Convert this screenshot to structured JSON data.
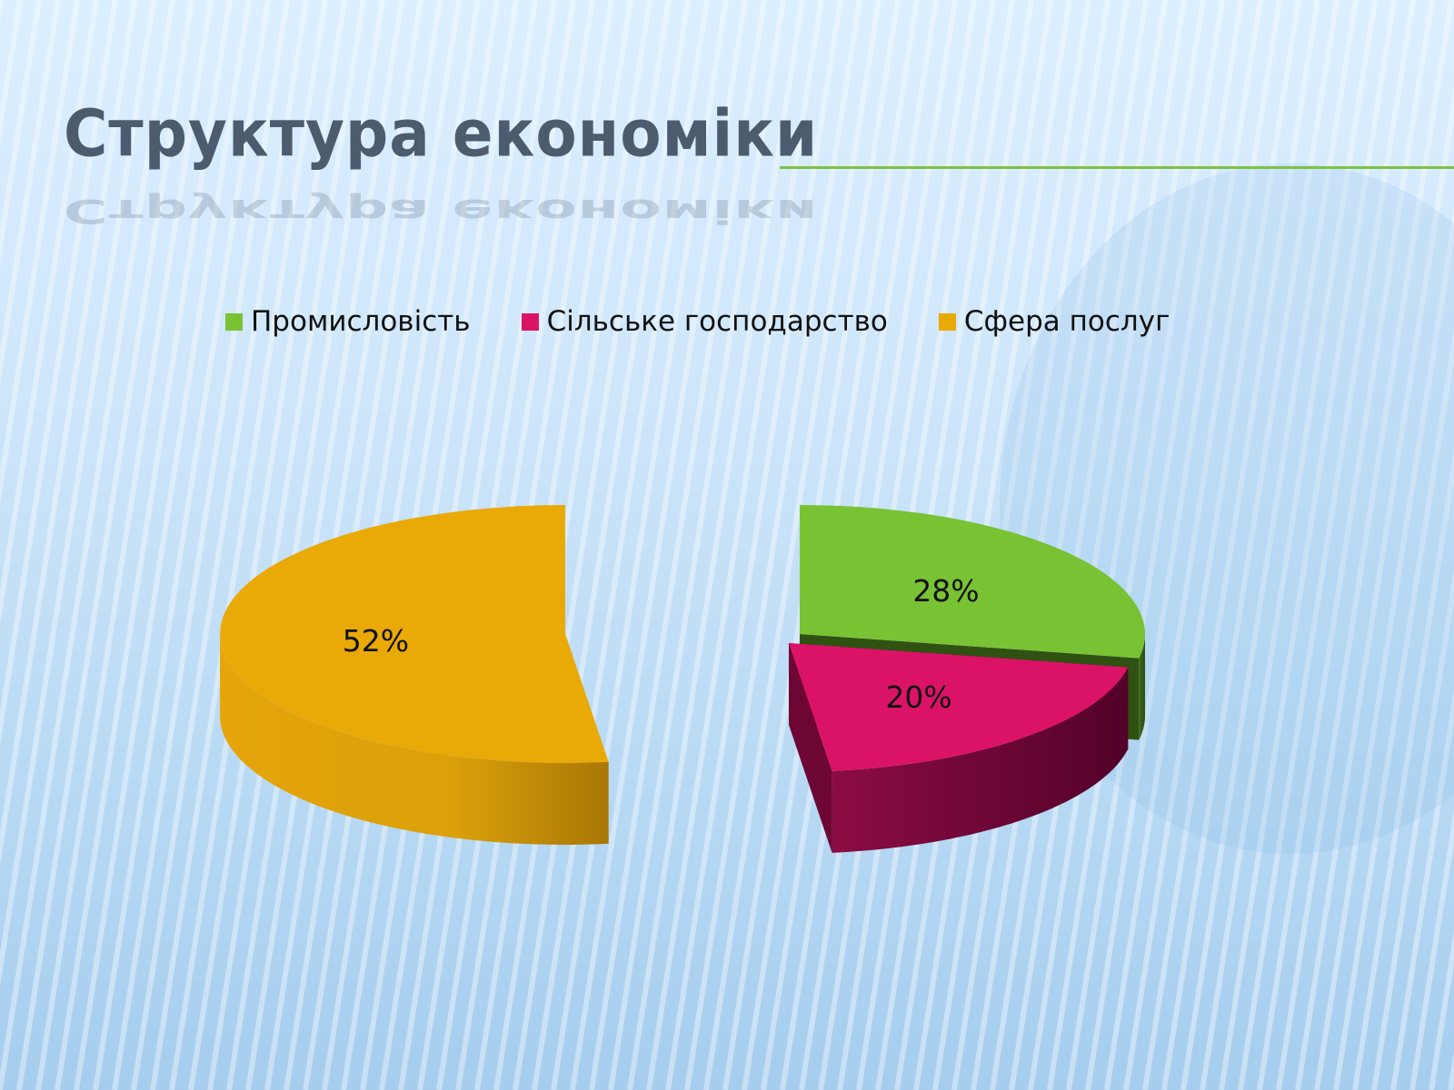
{
  "slide": {
    "title": "Структура економіки",
    "accent_color": "#7cc242"
  },
  "chart_data": {
    "type": "pie",
    "variant": "3d-exploded",
    "legend_position": "top",
    "categories": [
      "Промисловість",
      "Сільське господарство",
      "Сфера послуг"
    ],
    "values": [
      28,
      20,
      52
    ],
    "labels": [
      "28%",
      "20%",
      "52%"
    ],
    "colors": [
      "#78c234",
      "#db1367",
      "#e9a907"
    ]
  }
}
